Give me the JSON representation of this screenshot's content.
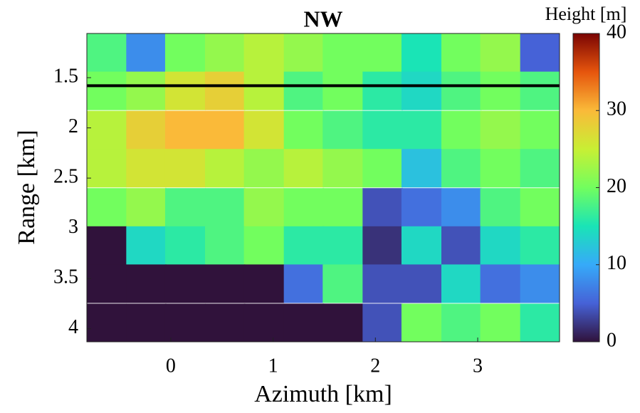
{
  "chart_data": {
    "type": "heatmap",
    "title": "NW",
    "xlabel": "Azimuth [km]",
    "ylabel": "Range [km]",
    "colorbar_label": "Height [m]",
    "x": [
      -0.63,
      -0.24,
      0.14,
      0.53,
      0.91,
      1.3,
      1.68,
      2.07,
      2.45,
      2.84,
      3.22,
      3.61
    ],
    "y": [
      1.25,
      1.63,
      2.02,
      2.4,
      2.79,
      3.17,
      3.55,
      3.94
    ],
    "z": [
      [
        18,
        8,
        20,
        22,
        24,
        22,
        20,
        20,
        15,
        20,
        22,
        5
      ],
      [
        20,
        22,
        26,
        28,
        24,
        18,
        20,
        16,
        14,
        18,
        20,
        18
      ],
      [
        24,
        28,
        30,
        30,
        26,
        20,
        18,
        16,
        16,
        20,
        22,
        20
      ],
      [
        24,
        26,
        26,
        24,
        22,
        24,
        22,
        20,
        12,
        18,
        20,
        18
      ],
      [
        20,
        22,
        18,
        18,
        22,
        20,
        20,
        4,
        6,
        8,
        18,
        20
      ],
      [
        0,
        14,
        16,
        18,
        20,
        16,
        16,
        2,
        14,
        4,
        14,
        16
      ],
      [
        0,
        0,
        0,
        0,
        0,
        6,
        18,
        4,
        4,
        14,
        6,
        8
      ],
      [
        0,
        0,
        0,
        0,
        0,
        0,
        0,
        4,
        20,
        18,
        20,
        16
      ]
    ],
    "xlim": [
      -0.82,
      3.8
    ],
    "ylim": [
      1.06,
      4.13
    ],
    "y_reversed": true,
    "xticks": [
      0,
      1,
      2,
      3
    ],
    "yticks": [
      1.5,
      2,
      2.5,
      3,
      3.5,
      4
    ],
    "clim": [
      0,
      40
    ],
    "cticks": [
      0,
      10,
      20,
      30,
      40
    ],
    "colormap": [
      "#30123b",
      "#4662d7",
      "#36aaf9",
      "#1ae4b6",
      "#72fe5e",
      "#c8ef34",
      "#faba39",
      "#e6550d",
      "#7a0403"
    ],
    "reference_line": 1.58,
    "reference_line_color": "#000000"
  }
}
